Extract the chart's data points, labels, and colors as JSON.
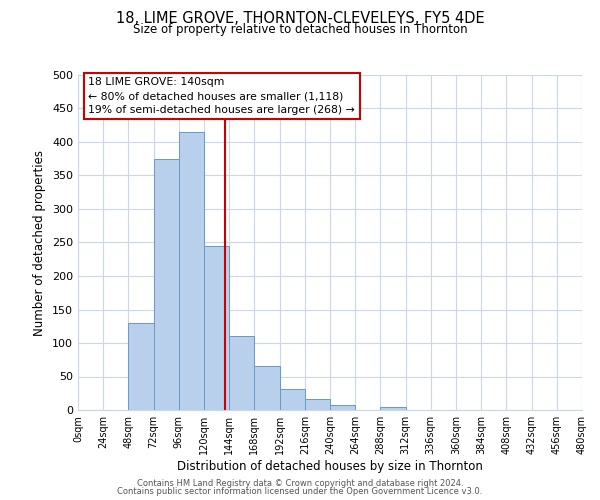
{
  "title": "18, LIME GROVE, THORNTON-CLEVELEYS, FY5 4DE",
  "subtitle": "Size of property relative to detached houses in Thornton",
  "xlabel": "Distribution of detached houses by size in Thornton",
  "ylabel": "Number of detached properties",
  "bar_color": "#b8d0eb",
  "bar_edge_color": "#6699cc",
  "background_color": "#ffffff",
  "grid_color": "#c8d8ea",
  "bin_edges": [
    0,
    24,
    48,
    72,
    96,
    120,
    144,
    168,
    192,
    216,
    240,
    264,
    288,
    312,
    336,
    360,
    384,
    408,
    432,
    456,
    480
  ],
  "bar_heights": [
    0,
    0,
    130,
    375,
    415,
    245,
    110,
    65,
    32,
    17,
    7,
    0,
    5,
    0,
    0,
    0,
    0,
    0,
    0,
    0
  ],
  "property_size": 140,
  "annotation_title": "18 LIME GROVE: 140sqm",
  "annotation_line1": "← 80% of detached houses are smaller (1,118)",
  "annotation_line2": "19% of semi-detached houses are larger (268) →",
  "annotation_box_color": "#ffffff",
  "annotation_box_edge": "#cc0000",
  "vline_color": "#cc0000",
  "tick_labels": [
    "0sqm",
    "24sqm",
    "48sqm",
    "72sqm",
    "96sqm",
    "120sqm",
    "144sqm",
    "168sqm",
    "192sqm",
    "216sqm",
    "240sqm",
    "264sqm",
    "288sqm",
    "312sqm",
    "336sqm",
    "360sqm",
    "384sqm",
    "408sqm",
    "432sqm",
    "456sqm",
    "480sqm"
  ],
  "ylim": [
    0,
    500
  ],
  "yticks": [
    0,
    50,
    100,
    150,
    200,
    250,
    300,
    350,
    400,
    450,
    500
  ],
  "footer_line1": "Contains HM Land Registry data © Crown copyright and database right 2024.",
  "footer_line2": "Contains public sector information licensed under the Open Government Licence v3.0."
}
